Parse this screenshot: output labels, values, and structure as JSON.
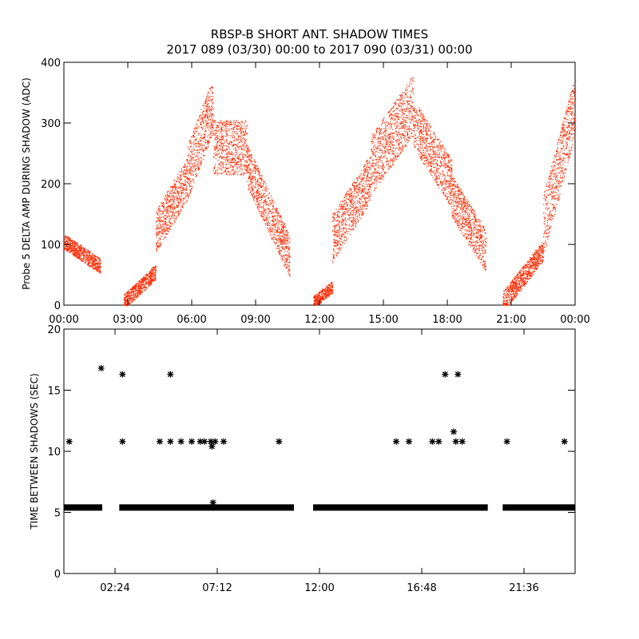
{
  "title_line1": "RBSP-B SHORT ANT. SHADOW TIMES",
  "title_line2": "2017 089 (03/30) 00:00 to 2017 090 (03/31) 00:00",
  "colors": {
    "top_points": "#ff2a00",
    "bottom_points": "#000000",
    "axes": "#000000"
  },
  "chart_data": [
    {
      "type": "scatter",
      "ylabel": "Probe 5 DELTA AMP DURING SHADOW (ADC)",
      "xlim": [
        0,
        24
      ],
      "ylim": [
        0,
        400
      ],
      "xtick_values": [
        0,
        3,
        6,
        9,
        12,
        15,
        18,
        21,
        24
      ],
      "xtick_labels": [
        "00:00",
        "03:00",
        "06:00",
        "09:00",
        "12:00",
        "15:00",
        "18:00",
        "21:00",
        "00:00"
      ],
      "ytick_values": [
        0,
        100,
        200,
        300,
        400
      ],
      "ytick_labels": [
        "0",
        "100",
        "200",
        "300",
        "400"
      ],
      "segments": [
        {
          "t0": 0.0,
          "t1": 1.7,
          "y0": 105,
          "y1": 65,
          "spread": 25
        },
        {
          "t0": 2.8,
          "t1": 4.3,
          "y0": 5,
          "y1": 55,
          "spread": 25
        },
        {
          "t0": 4.3,
          "t1": 5.8,
          "y0": 120,
          "y1": 210,
          "spread": 70
        },
        {
          "t0": 5.8,
          "t1": 7.0,
          "y0": 220,
          "y1": 330,
          "spread": 90
        },
        {
          "t0": 7.0,
          "t1": 8.6,
          "y0": 260,
          "y1": 260,
          "spread": 90
        },
        {
          "t0": 8.6,
          "t1": 10.6,
          "y0": 230,
          "y1": 80,
          "spread": 70
        },
        {
          "t0": 11.7,
          "t1": 12.6,
          "y0": 5,
          "y1": 30,
          "spread": 20
        },
        {
          "t0": 12.6,
          "t1": 14.4,
          "y0": 110,
          "y1": 210,
          "spread": 80
        },
        {
          "t0": 14.4,
          "t1": 16.4,
          "y0": 230,
          "y1": 330,
          "spread": 100
        },
        {
          "t0": 16.4,
          "t1": 18.2,
          "y0": 300,
          "y1": 200,
          "spread": 80
        },
        {
          "t0": 18.2,
          "t1": 19.8,
          "y0": 180,
          "y1": 90,
          "spread": 70
        },
        {
          "t0": 20.6,
          "t1": 22.5,
          "y0": 5,
          "y1": 90,
          "spread": 35
        },
        {
          "t0": 22.5,
          "t1": 24.0,
          "y0": 130,
          "y1": 330,
          "spread": 100
        }
      ]
    },
    {
      "type": "scatter",
      "marker": "asterisk",
      "ylabel": "TIME BETWEEN SHADOWS (SEC)",
      "xlim": [
        0,
        24
      ],
      "ylim": [
        0,
        20
      ],
      "xtick_values": [
        2.4,
        7.2,
        12.0,
        16.8,
        21.6
      ],
      "xtick_labels": [
        "02:24",
        "07:12",
        "12:00",
        "16:48",
        "21:36"
      ],
      "ytick_values": [
        0,
        5,
        10,
        15,
        20
      ],
      "ytick_labels": [
        "0",
        "5",
        "10",
        "15",
        "20"
      ],
      "baseline": {
        "value": 5.4,
        "ranges": [
          [
            0.0,
            1.8
          ],
          [
            2.6,
            10.8
          ],
          [
            11.7,
            19.9
          ],
          [
            20.6,
            24.0
          ]
        ]
      },
      "points": [
        {
          "x": 0.25,
          "y": 10.8
        },
        {
          "x": 1.75,
          "y": 16.8
        },
        {
          "x": 2.75,
          "y": 16.3
        },
        {
          "x": 2.75,
          "y": 10.8
        },
        {
          "x": 4.5,
          "y": 10.8
        },
        {
          "x": 5.0,
          "y": 16.3
        },
        {
          "x": 5.0,
          "y": 10.8
        },
        {
          "x": 5.5,
          "y": 10.8
        },
        {
          "x": 6.0,
          "y": 10.8
        },
        {
          "x": 6.4,
          "y": 10.8
        },
        {
          "x": 6.6,
          "y": 10.8
        },
        {
          "x": 6.9,
          "y": 10.8
        },
        {
          "x": 6.95,
          "y": 10.4
        },
        {
          "x": 7.0,
          "y": 5.8
        },
        {
          "x": 7.1,
          "y": 10.8
        },
        {
          "x": 7.5,
          "y": 10.8
        },
        {
          "x": 10.1,
          "y": 10.8
        },
        {
          "x": 15.6,
          "y": 10.8
        },
        {
          "x": 16.2,
          "y": 10.8
        },
        {
          "x": 17.3,
          "y": 10.8
        },
        {
          "x": 17.6,
          "y": 10.8
        },
        {
          "x": 17.9,
          "y": 16.3
        },
        {
          "x": 18.3,
          "y": 11.6
        },
        {
          "x": 18.5,
          "y": 16.3
        },
        {
          "x": 18.4,
          "y": 10.8
        },
        {
          "x": 18.7,
          "y": 10.8
        },
        {
          "x": 20.8,
          "y": 10.8
        },
        {
          "x": 23.5,
          "y": 10.8
        }
      ]
    }
  ]
}
